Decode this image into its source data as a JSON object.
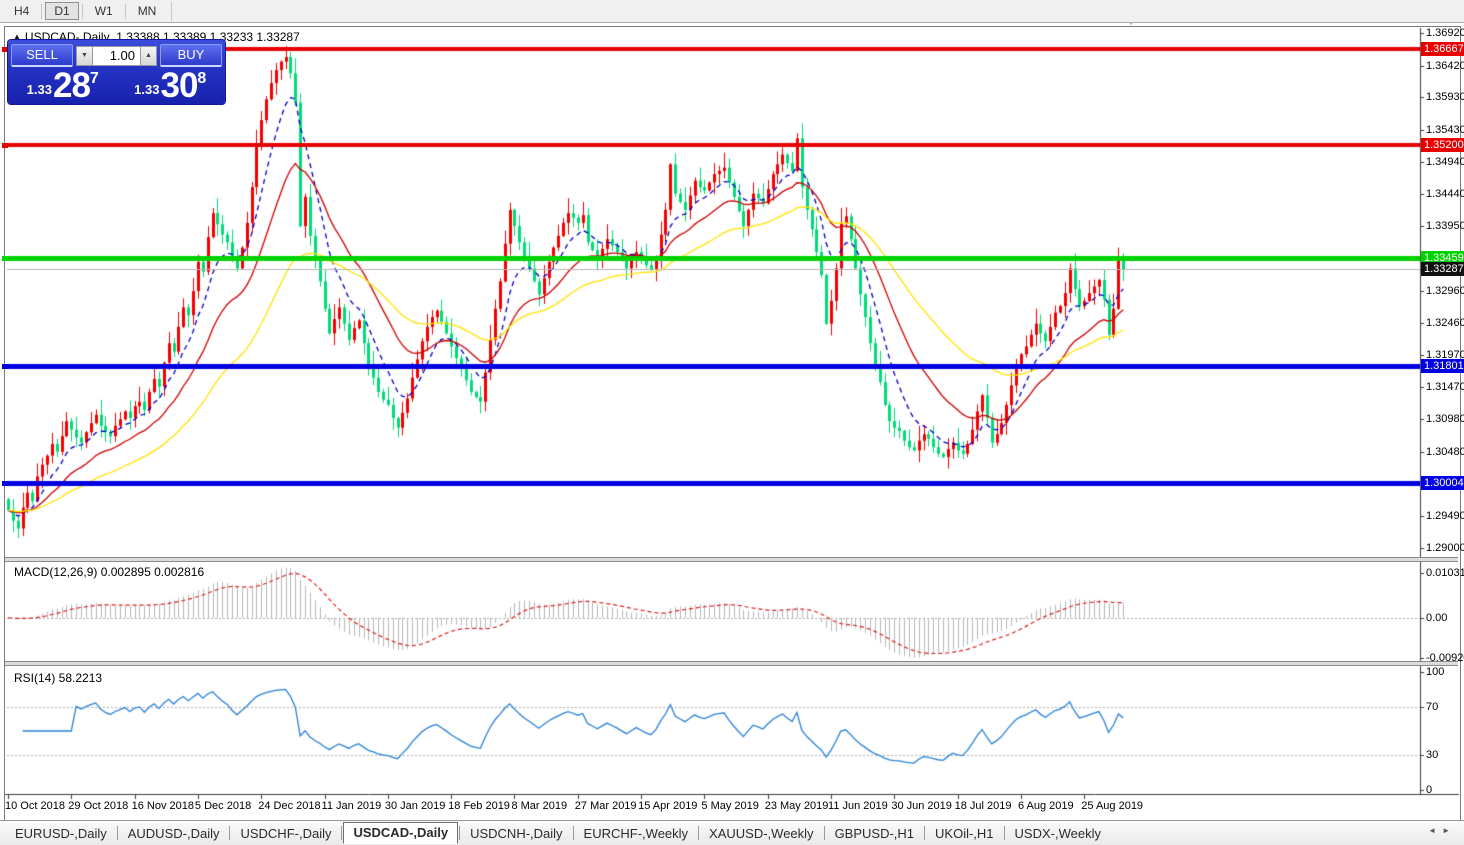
{
  "toolbar": {
    "timeframes": [
      "H4",
      "D1",
      "W1",
      "MN"
    ],
    "active_timeframe": "D1"
  },
  "chart_header": {
    "symbol_line": "USDCAD-,Daily  1.33388 1.33389 1.33233 1.33287"
  },
  "icons": {
    "collapse_panel": "▲",
    "spinner_up": "▲",
    "spinner_down": "▼",
    "tab_prev": "◄",
    "tab_next": "►"
  },
  "trade_panel": {
    "sell_label": "SELL",
    "buy_label": "BUY",
    "volume": "1.00",
    "sell_price_small": "1.33",
    "sell_price_big": "28",
    "sell_price_sup": "7",
    "buy_price_small": "1.33",
    "buy_price_big": "30",
    "buy_price_sup": "8"
  },
  "macd_panel": {
    "label": "MACD(12,26,9) 0.002895 0.002816"
  },
  "rsi_panel": {
    "label": "RSI(14) 58.2213"
  },
  "tabs": {
    "items": [
      {
        "label": "EURUSD-,Daily",
        "active": false
      },
      {
        "label": "AUDUSD-,Daily",
        "active": false
      },
      {
        "label": "USDCHF-,Daily",
        "active": false
      },
      {
        "label": "USDCAD-,Daily",
        "active": true
      },
      {
        "label": "USDCNH-,Daily",
        "active": false
      },
      {
        "label": "EURCHF-,Weekly",
        "active": false
      },
      {
        "label": "XAUUSD-,Weekly",
        "active": false
      },
      {
        "label": "GBPUSD-,H1",
        "active": false
      },
      {
        "label": "UKOil-,H1",
        "active": false
      },
      {
        "label": "USDX-,Weekly",
        "active": false
      }
    ]
  },
  "chart_data": {
    "type": "candlestick",
    "symbol": "USDCAD-",
    "timeframe": "Daily",
    "quote": {
      "open": "1.33388",
      "high": "1.33389",
      "low": "1.33233",
      "close": "1.33287"
    },
    "y_range": {
      "top": 1.3692,
      "bottom": 1.29
    },
    "price_axis_ticks": [
      {
        "label": "1.36920",
        "value": 1.3692
      },
      {
        "label": "1.36420",
        "value": 1.3642
      },
      {
        "label": "1.35930",
        "value": 1.3593
      },
      {
        "label": "1.35430",
        "value": 1.3543
      },
      {
        "label": "1.34940",
        "value": 1.3494
      },
      {
        "label": "1.34440",
        "value": 1.3444
      },
      {
        "label": "1.33950",
        "value": 1.3395
      },
      {
        "label": "1.32960",
        "value": 1.3296
      },
      {
        "label": "1.32460",
        "value": 1.3246
      },
      {
        "label": "1.31970",
        "value": 1.3197
      },
      {
        "label": "1.31470",
        "value": 1.3147
      },
      {
        "label": "1.30980",
        "value": 1.3098
      },
      {
        "label": "1.30480",
        "value": 1.3048
      },
      {
        "label": "1.29490",
        "value": 1.2949
      },
      {
        "label": "1.29000",
        "value": 1.29
      }
    ],
    "hlines": [
      {
        "label": "1.36667",
        "value": 1.36667,
        "color": "#e80000",
        "width": 4
      },
      {
        "label": "1.35200",
        "value": 1.352,
        "color": "#e80000",
        "width": 4
      },
      {
        "label": "1.33459",
        "value": 1.33459,
        "color": "#00d300",
        "width": 5
      },
      {
        "label": "1.31801",
        "value": 1.31801,
        "color": "#0000e0",
        "width": 5
      },
      {
        "label": "1.30004",
        "value": 1.30004,
        "color": "#0000e0",
        "width": 5
      }
    ],
    "current_price": {
      "label": "1.33287",
      "value": 1.33287,
      "line_color": "#b4b4b4",
      "badge_color": "#111111"
    },
    "x_labels": [
      "10 Oct 2018",
      "29 Oct 2018",
      "16 Nov 2018",
      "5 Dec 2018",
      "24 Dec 2018",
      "11 Jan 2019",
      "30 Jan 2019",
      "18 Feb 2019",
      "8 Mar 2019",
      "27 Mar 2019",
      "15 Apr 2019",
      "5 May 2019",
      "23 May 2019",
      "11 Jun 2019",
      "30 Jun 2019",
      "18 Jul 2019",
      "6 Aug 2019",
      "25 Aug 2019"
    ],
    "x_tick_step": 13,
    "first_open": 1.2975,
    "bull_color": "#f40000",
    "bear_color": "#00dc78",
    "closes": [
      1.2958,
      1.2942,
      1.293,
      1.2962,
      1.2985,
      1.2972,
      1.301,
      1.3028,
      1.3042,
      1.306,
      1.3048,
      1.3072,
      1.3095,
      1.3082,
      1.307,
      1.3062,
      1.3078,
      1.3092,
      1.3105,
      1.3088,
      1.3078,
      1.3072,
      1.3088,
      1.3098,
      1.311,
      1.31,
      1.3118,
      1.3125,
      1.3112,
      1.314,
      1.316,
      1.3148,
      1.3185,
      1.3215,
      1.3202,
      1.324,
      1.327,
      1.3258,
      1.3295,
      1.334,
      1.3325,
      1.3378,
      1.3415,
      1.3398,
      1.3382,
      1.337,
      1.3348,
      1.333,
      1.3362,
      1.34,
      1.3455,
      1.352,
      1.3558,
      1.359,
      1.3615,
      1.3635,
      1.3648,
      1.3655,
      1.363,
      1.3585,
      1.3395,
      1.344,
      1.338,
      1.3342,
      1.331,
      1.3268,
      1.323,
      1.3252,
      1.327,
      1.3245,
      1.322,
      1.3238,
      1.325,
      1.3215,
      1.318,
      1.3162,
      1.314,
      1.3128,
      1.312,
      1.31,
      1.3085,
      1.3108,
      1.313,
      1.3162,
      1.319,
      1.3218,
      1.324,
      1.3255,
      1.3265,
      1.3248,
      1.323,
      1.321,
      1.3192,
      1.3175,
      1.3158,
      1.314,
      1.3132,
      1.3125,
      1.317,
      1.322,
      1.3268,
      1.331,
      1.3368,
      1.342,
      1.3395,
      1.337,
      1.3348,
      1.333,
      1.331,
      1.329,
      1.3315,
      1.334,
      1.3362,
      1.338,
      1.34,
      1.3415,
      1.3408,
      1.34,
      1.3412,
      1.337,
      1.3358,
      1.3345,
      1.336,
      1.3375,
      1.3365,
      1.3355,
      1.3342,
      1.333,
      1.3342,
      1.3355,
      1.3345,
      1.3335,
      1.3328,
      1.3345,
      1.3382,
      1.342,
      1.349,
      1.3445,
      1.3432,
      1.342,
      1.3442,
      1.3465,
      1.3455,
      1.345,
      1.3462,
      1.3475,
      1.348,
      1.3485,
      1.3462,
      1.344,
      1.3418,
      1.3395,
      1.342,
      1.3445,
      1.3438,
      1.343,
      1.3452,
      1.3475,
      1.349,
      1.3505,
      1.3492,
      1.348,
      1.353,
      1.3455,
      1.342,
      1.339,
      1.3355,
      1.332,
      1.3245,
      1.328,
      1.333,
      1.34,
      1.341,
      1.3375,
      1.333,
      1.329,
      1.3255,
      1.3215,
      1.318,
      1.3155,
      1.312,
      1.3095,
      1.3085,
      1.308,
      1.3065,
      1.3055,
      1.305,
      1.3065,
      1.3075,
      1.3068,
      1.3055,
      1.3045,
      1.304,
      1.3052,
      1.3062,
      1.305,
      1.3045,
      1.306,
      1.3082,
      1.311,
      1.3135,
      1.31,
      1.3062,
      1.3075,
      1.3092,
      1.312,
      1.315,
      1.318,
      1.3198,
      1.321,
      1.3228,
      1.3245,
      1.323,
      1.3218,
      1.324,
      1.3262,
      1.3272,
      1.3292,
      1.333,
      1.3298,
      1.3272,
      1.328,
      1.3292,
      1.3302,
      1.3312,
      1.3282,
      1.3228,
      1.3268,
      1.3348,
      1.33287
    ],
    "ma_lines": [
      {
        "period": 8,
        "color": "#0000c8",
        "dash": [
          5,
          4
        ]
      },
      {
        "period": 20,
        "color": "#d00000",
        "dash": []
      },
      {
        "period": 45,
        "color": "#ffe400",
        "dash": []
      }
    ],
    "macd": {
      "fast": 12,
      "slow": 26,
      "signal_period": 9,
      "hist_color": "#b8b8b8",
      "signal_color": "#e02020",
      "range": {
        "top": 0.010311,
        "bottom": -0.009203
      },
      "axis": [
        {
          "label": "0.010311",
          "value": 0.010311
        },
        {
          "label": "0.00",
          "value": 0
        },
        {
          "label": "-0.009203",
          "value": -0.009203
        }
      ]
    },
    "rsi": {
      "period": 14,
      "color": "#2a82d8",
      "levels": [
        70,
        30
      ],
      "range": {
        "top": 100,
        "bottom": 0
      },
      "axis": [
        {
          "label": "100",
          "value": 100
        },
        {
          "label": "70",
          "value": 70
        },
        {
          "label": "30",
          "value": 30
        },
        {
          "label": "0",
          "value": 0
        }
      ]
    }
  }
}
